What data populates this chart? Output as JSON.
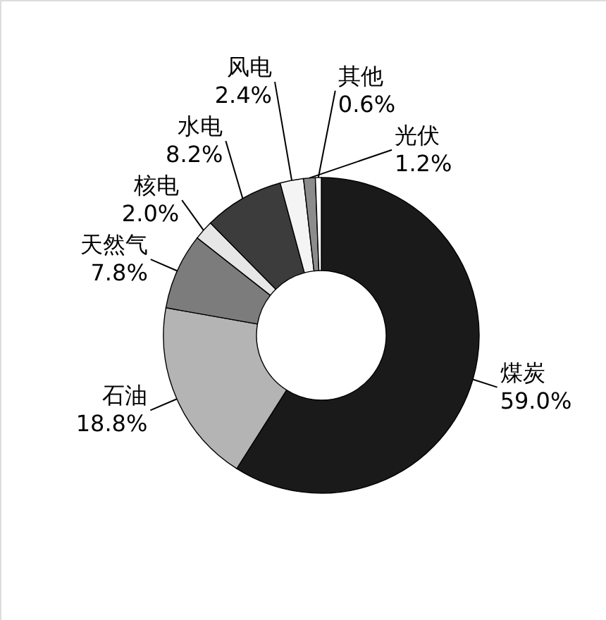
{
  "chart_data": {
    "type": "donut",
    "categories": [
      "煤炭",
      "石油",
      "天然气",
      "核电",
      "水电",
      "风电",
      "光伏",
      "其他"
    ],
    "values": [
      59.0,
      18.8,
      7.8,
      2.0,
      8.2,
      2.4,
      1.2,
      0.6
    ],
    "colors": [
      "#1a1a1a",
      "#b4b4b4",
      "#7c7c7c",
      "#e6e6e6",
      "#3c3c3c",
      "#f4f4f4",
      "#8c8c8c",
      "#ffffff"
    ],
    "value_labels": [
      "59.0%",
      "18.8%",
      "7.8%",
      "2.0%",
      "8.2%",
      "2.4%",
      "1.2%",
      "0.6%"
    ]
  }
}
